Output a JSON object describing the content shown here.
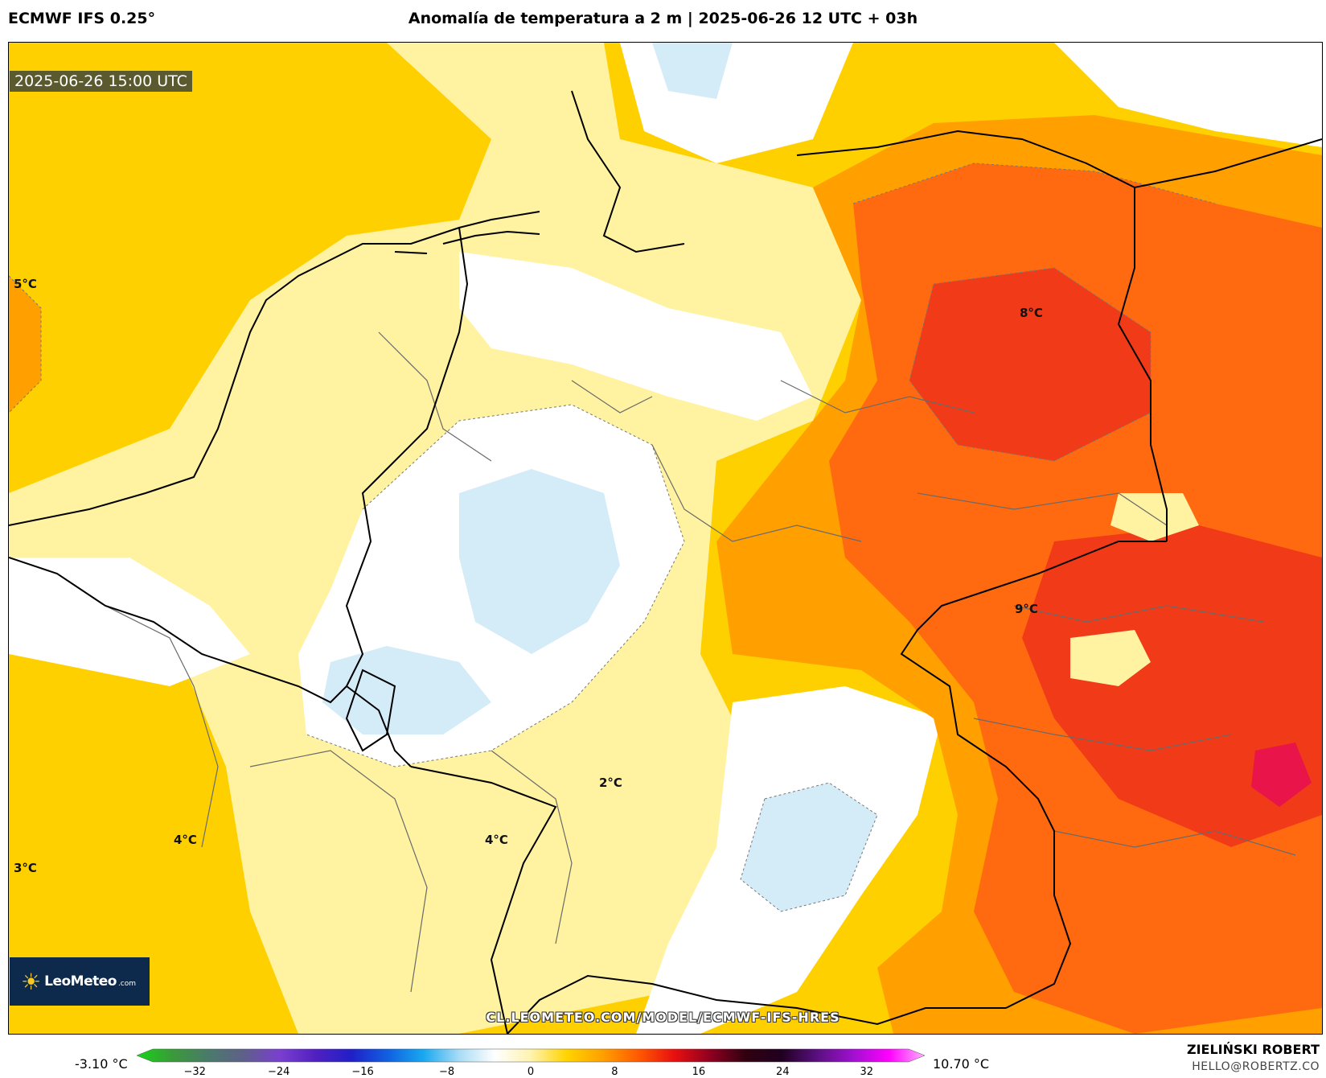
{
  "header": {
    "model": "ECMWF IFS 0.25°",
    "title": "Anomalía de temperatura a 2 m | 2025-06-26 12 UTC + 03h"
  },
  "map": {
    "valid_time": "2025-06-26 15:00 UTC",
    "labels": [
      {
        "id": "west-5",
        "text": "5°C"
      },
      {
        "id": "north-8",
        "text": "8°C"
      },
      {
        "id": "east-9",
        "text": "9°C"
      },
      {
        "id": "south-2",
        "text": "2°C"
      },
      {
        "id": "southwest-4",
        "text": "4°C"
      },
      {
        "id": "south-4",
        "text": "4°C"
      },
      {
        "id": "west-3",
        "text": "3°C"
      }
    ],
    "source_url": "CL.LEOMETEO.COM/MODEL/ECMWF-IFS-HRES"
  },
  "branding": {
    "logo_name": "LeoMeteo",
    "logo_domain": ".com",
    "author": "ZIELIŃSKI ROBERT",
    "email": "HELLO@ROBERTZ.CO"
  },
  "colorbar": {
    "min_label": "-3.10 °C",
    "max_label": "10.70 °C",
    "range": [
      -36,
      36
    ],
    "ticks": [
      "−32",
      "−24",
      "−16",
      "−8",
      "0",
      "8",
      "16",
      "24",
      "32"
    ],
    "stops": [
      "#17d417",
      "#3a9a3a",
      "#4a7a6a",
      "#5f5f8a",
      "#7a3fd0",
      "#5020c0",
      "#2020c8",
      "#1060e0",
      "#18a8f0",
      "#a8dcf5",
      "#ffffff",
      "#fff3b0",
      "#ffd400",
      "#ffa000",
      "#ff5a00",
      "#e81010",
      "#900020",
      "#300010",
      "#200020",
      "#5a1080",
      "#a010d0",
      "#ff00ff",
      "#ffb0ff"
    ]
  },
  "colors": {
    "anom_pos_low": "#ffe84d",
    "anom_pos_mid": "#ffd000",
    "anom_pos_high": "#ff9a00",
    "anom_hot": "#ff6a10",
    "anom_very_hot": "#f03a18",
    "near_zero": "#ffffff",
    "anom_neg": "#cfe8f7"
  }
}
